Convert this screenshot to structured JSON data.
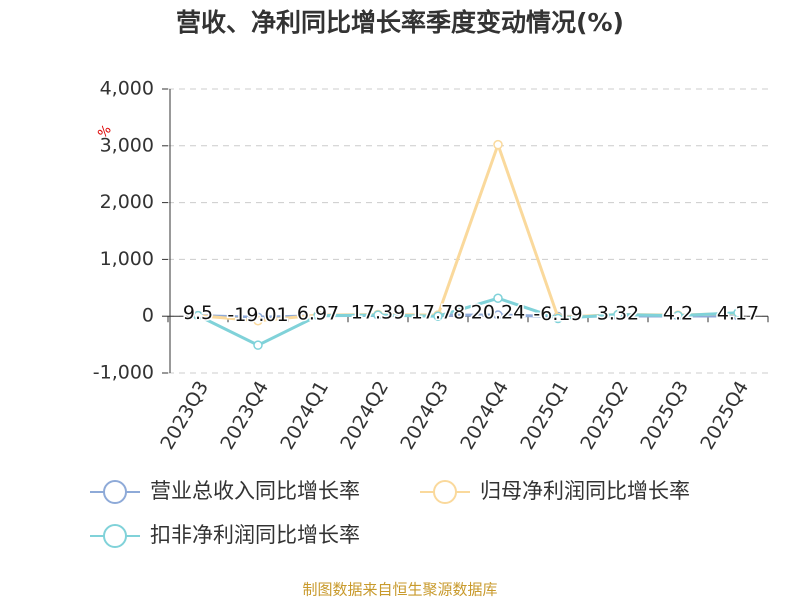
{
  "chart_data": {
    "type": "line",
    "title": "营收、净利同比增长率季度变动情况(%)",
    "y_label": "%",
    "categories": [
      "2023Q3",
      "2023Q4",
      "2024Q1",
      "2024Q2",
      "2024Q3",
      "2024Q4",
      "2025Q1",
      "2025Q2",
      "2025Q3",
      "2025Q4"
    ],
    "series": [
      {
        "name": "营业总收入同比增长率",
        "color": "#8eaad8",
        "values": [
          9.5,
          -19.01,
          6.97,
          17.39,
          17.78,
          20.24,
          -6.19,
          3.32,
          4.2,
          4.17
        ],
        "labels": true
      },
      {
        "name": "归母净利润同比增长率",
        "color": "#fad99c",
        "values": [
          10,
          -80,
          20,
          30,
          20,
          3020,
          -20,
          30,
          20,
          50
        ]
      },
      {
        "name": "扣非净利润同比增长率",
        "color": "#80d2d9",
        "values": [
          10,
          -510,
          10,
          20,
          0,
          316,
          -40,
          30,
          10,
          60
        ]
      }
    ],
    "ylim": [
      -1000,
      4000
    ],
    "yticks": [
      {
        "value": -1000,
        "label": "-1,000"
      },
      0,
      {
        "value": 1000,
        "label": "1,000"
      },
      {
        "value": 2000,
        "label": "2,000"
      },
      {
        "value": 3000,
        "label": "3,000"
      },
      {
        "value": 4000,
        "label": "4,000"
      }
    ],
    "grid": true,
    "source": "制图数据来自恒生聚源数据库"
  }
}
